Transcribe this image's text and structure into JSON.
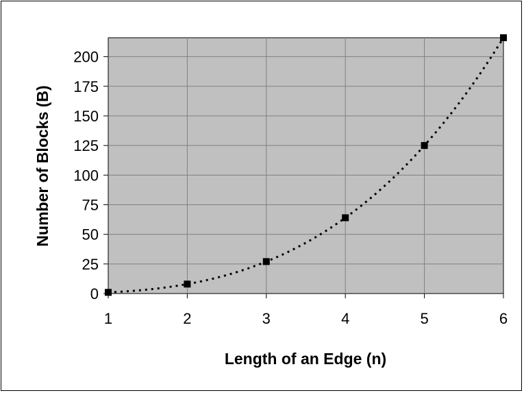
{
  "chart_data": {
    "type": "scatter",
    "title": "",
    "xlabel": "Length of an Edge (n)",
    "ylabel": "Number of Blocks (B)",
    "xlim": [
      1,
      6
    ],
    "ylim": [
      0,
      216
    ],
    "x_ticks": [
      1,
      2,
      3,
      4,
      5,
      6
    ],
    "y_ticks": [
      0,
      25,
      50,
      75,
      100,
      125,
      150,
      175,
      200
    ],
    "x_tick_labels": [
      "1",
      "2",
      "3",
      "4",
      "5",
      "6"
    ],
    "y_tick_labels": [
      "0",
      "25",
      "50",
      "75",
      "100",
      "125",
      "150",
      "175",
      "200"
    ],
    "grid": true,
    "legend": "none",
    "trendline": "cubic, dotted",
    "series": [
      {
        "x": [
          1,
          2,
          3,
          4,
          5,
          6
        ],
        "values": [
          1,
          8,
          27,
          64,
          125,
          216
        ],
        "marker": "square"
      }
    ],
    "colors": {
      "plot_background": "#c0c0c0",
      "gridline": "#808080",
      "marker": "#000000",
      "trendline": "#000000"
    }
  }
}
